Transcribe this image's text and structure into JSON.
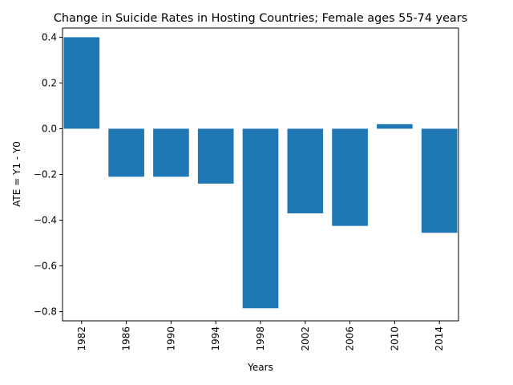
{
  "chart_data": {
    "type": "bar",
    "title": "Change in Suicide Rates in Hosting Countries; Female ages 55-74 years",
    "xlabel": "Years",
    "ylabel": "ATE = Y1 - Y0",
    "categories": [
      "1982",
      "1986",
      "1990",
      "1994",
      "1998",
      "2002",
      "2006",
      "2010",
      "2014"
    ],
    "values": [
      0.4,
      -0.21,
      -0.21,
      -0.24,
      -0.785,
      -0.37,
      -0.425,
      0.02,
      -0.455
    ],
    "ylim": [
      -0.84,
      0.44
    ],
    "yticks": [
      -0.8,
      -0.6,
      -0.4,
      -0.2,
      0.0,
      0.2,
      0.4
    ],
    "ytick_labels": [
      "−0.8",
      "−0.6",
      "−0.4",
      "−0.2",
      "0.0",
      "0.2",
      "0.4"
    ],
    "bar_color": "#1f77b4",
    "grid": false,
    "legend": "none"
  }
}
